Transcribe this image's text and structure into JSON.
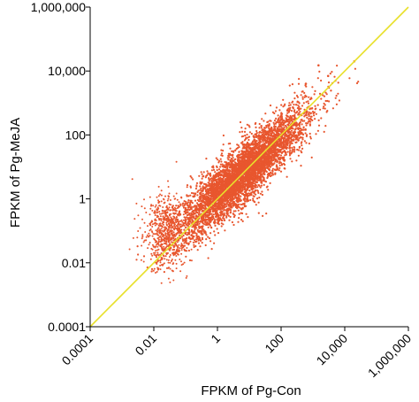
{
  "chart_data": {
    "type": "scatter",
    "title": "",
    "xlabel": "FPKM of Pg-Con",
    "ylabel": "FPKM of Pg-MeJA",
    "x_scale": "log10",
    "y_scale": "log10",
    "xlim": [
      0.0001,
      1000000
    ],
    "ylim": [
      0.0001,
      1000000
    ],
    "x_ticks": [
      {
        "value": 0.0001,
        "label": "0.0001"
      },
      {
        "value": 0.01,
        "label": "0.01"
      },
      {
        "value": 1,
        "label": "1"
      },
      {
        "value": 100,
        "label": "100"
      },
      {
        "value": 10000,
        "label": "10,000"
      },
      {
        "value": 1000000,
        "label": "1,000,000"
      }
    ],
    "y_ticks": [
      {
        "value": 0.0001,
        "label": "0.0001"
      },
      {
        "value": 0.01,
        "label": "0.01"
      },
      {
        "value": 1,
        "label": "1"
      },
      {
        "value": 100,
        "label": "100"
      },
      {
        "value": 10000,
        "label": "10,000"
      },
      {
        "value": 1000000,
        "label": "1,000,000"
      }
    ],
    "grid": false,
    "legend": "none",
    "point_color": "#e8562e",
    "diagonal_color": "#e8e02a",
    "reference_line": {
      "type": "y=x",
      "from": 0.0001,
      "to": 1000000
    },
    "point_cloud": {
      "x_range": [
        0.001,
        30000
      ],
      "y_range": [
        0.001,
        30000
      ],
      "dense_core": {
        "x": [
          0.01,
          1000
        ],
        "y": [
          0.01,
          1000
        ]
      },
      "notable_points": [
        {
          "x": 20000,
          "y": 20000
        },
        {
          "x": 1500,
          "y": 15000
        },
        {
          "x": 3000,
          "y": 7000
        },
        {
          "x": 600,
          "y": 4000
        }
      ]
    }
  }
}
